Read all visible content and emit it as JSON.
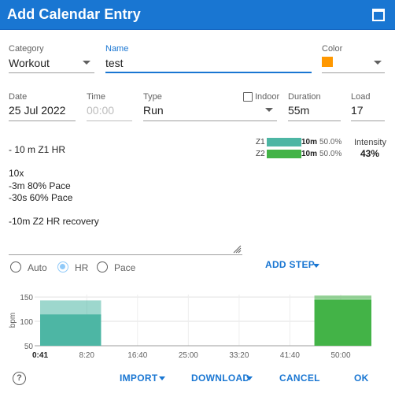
{
  "dialog": {
    "title": "Add Calendar Entry"
  },
  "form": {
    "category": {
      "label": "Category",
      "value": "Workout"
    },
    "name": {
      "label": "Name",
      "value": "test"
    },
    "color": {
      "label": "Color",
      "value": "#ff9800"
    },
    "date": {
      "label": "Date",
      "value": "25 Jul 2022"
    },
    "time": {
      "label": "Time",
      "placeholder": "00:00"
    },
    "type": {
      "label": "Type",
      "value": "Run"
    },
    "indoor": {
      "label": "Indoor",
      "checked": false
    },
    "duration": {
      "label": "Duration",
      "value": "55m"
    },
    "load": {
      "label": "Load",
      "value": "17"
    }
  },
  "zones": [
    {
      "name": "Z1",
      "duration": "10m",
      "percent": "50.0%",
      "color": "#4db6a4",
      "fraction": 0.5
    },
    {
      "name": "Z2",
      "duration": "10m",
      "percent": "50.0%",
      "color": "#43b347",
      "fraction": 0.5
    }
  ],
  "intensity": {
    "label": "Intensity",
    "value": "43%"
  },
  "description": {
    "lines": [
      "- 10 m Z1 HR",
      "",
      "10x",
      "-3m 80% Pace",
      "-30s 60% Pace",
      "",
      "-10m Z2 HR recovery"
    ]
  },
  "target_mode": {
    "options": [
      {
        "label": "Auto",
        "selected": false
      },
      {
        "label": "HR",
        "selected": true
      },
      {
        "label": "Pace",
        "selected": false
      }
    ]
  },
  "actions": {
    "add_step": "ADD STEP",
    "import": "IMPORT",
    "download": "DOWNLOAD",
    "cancel": "CANCEL",
    "ok": "OK"
  },
  "chart_data": {
    "type": "area",
    "ylabel": "bpm",
    "xlabel": "",
    "y_ticks": [
      "150",
      "100",
      "50"
    ],
    "x_ticks": [
      "0:41",
      "8:20",
      "16:40",
      "25:00",
      "33:20",
      "41:40",
      "50:00"
    ],
    "ylim": [
      50,
      155
    ],
    "grid": true,
    "blocks": [
      {
        "name": "Z1",
        "start": "0:41",
        "end": "10:41",
        "low_bpm": 113,
        "high_bpm": 143,
        "color": "#4db6a4"
      },
      {
        "name": "Z2",
        "start": "45:41",
        "end": "55:41",
        "low_bpm": 143,
        "high_bpm": 153,
        "color": "#43b347"
      }
    ]
  }
}
